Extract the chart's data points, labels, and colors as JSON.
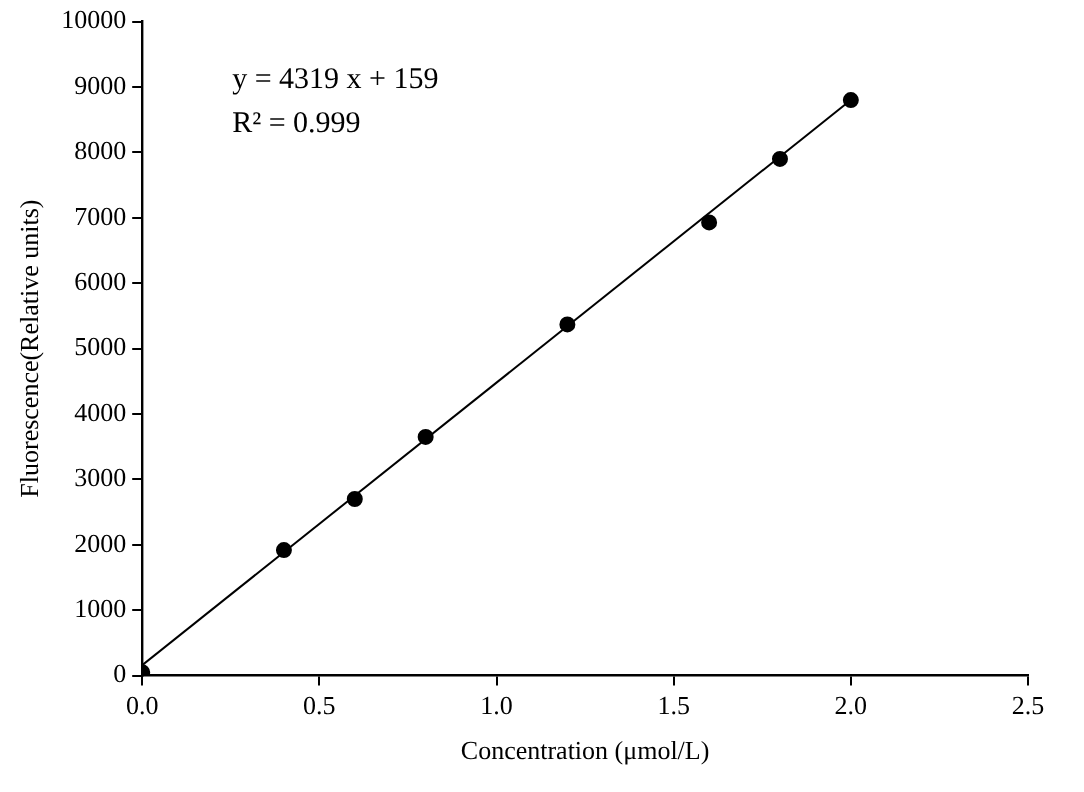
{
  "chart_data": {
    "type": "scatter",
    "xlabel": "Concentration (μmol/L)",
    "ylabel": "Fluorescence(Relative units)",
    "annotations": [
      "y = 4319 x + 159",
      "R² = 0.999"
    ],
    "series": [
      {
        "color": "#000000",
        "marker": "circle",
        "x": [
          0,
          0.4,
          0.6,
          0.8,
          1.2,
          1.6,
          1.8,
          2.0
        ],
        "values": [
          50,
          1920,
          2700,
          3650,
          5370,
          6930,
          7900,
          8800
        ]
      },
      {
        "type": "line",
        "color": "#000000",
        "marker": "none",
        "line_style": "solid",
        "x": [
          0,
          2.0
        ],
        "values": [
          160,
          8800
        ]
      }
    ],
    "xlim": [
      0,
      2.5
    ],
    "xticks": [
      {
        "value": 0,
        "label": "0.0"
      },
      0.5,
      {
        "value": 1,
        "label": "1.0"
      },
      1.5,
      {
        "value": 2,
        "label": "2.0"
      },
      2.5
    ],
    "ylim": [
      0,
      10000
    ],
    "yticks": [
      0,
      1000,
      2000,
      3000,
      4000,
      5000,
      6000,
      7000,
      8000,
      9000,
      10000
    ],
    "grid": false,
    "legend": false
  }
}
